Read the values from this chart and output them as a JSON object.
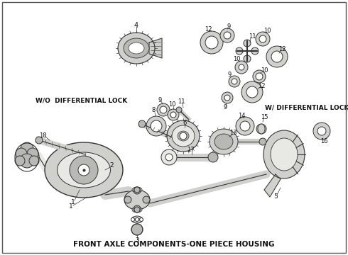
{
  "title": "FRONT AXLE COMPONENTS-ONE PIECE HOUSING",
  "label_wo": "W/O  DIFFERENTIAL LOCK",
  "label_w": "W/ DIFFERENTIAL LOCK",
  "bg_color": "#f5f5f0",
  "border_color": "#333333",
  "text_color": "#111111",
  "title_fontsize": 7.5,
  "label_fontsize": 6.5,
  "fig_width": 4.9,
  "fig_height": 3.6,
  "dpi": 100,
  "line_color": "#333333",
  "part_fill": "#d0d0cc",
  "part_fill2": "#b8b8b4",
  "part_fill3": "#e8e8e4"
}
